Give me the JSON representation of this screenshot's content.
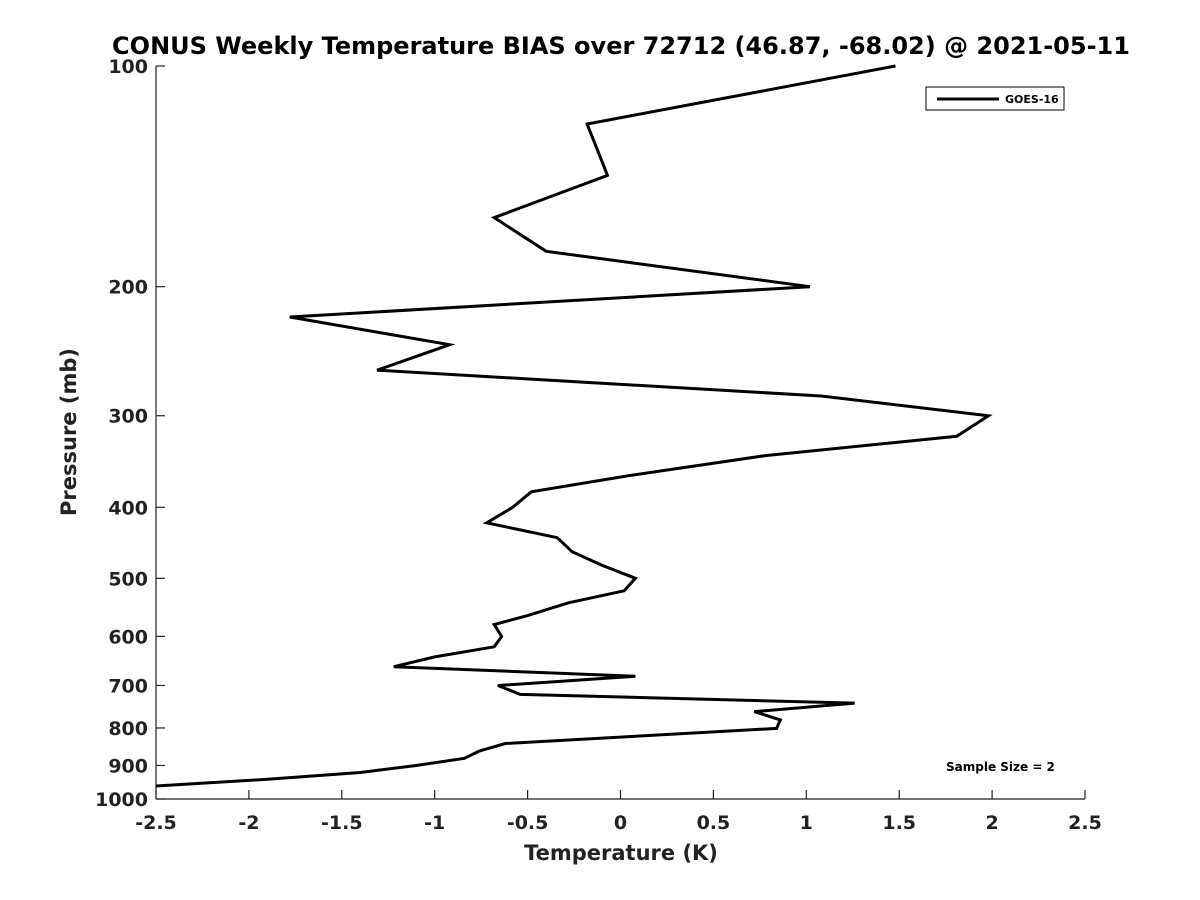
{
  "chart_data": {
    "type": "line",
    "title": "CONUS Weekly Temperature BIAS over 72712 (46.87, -68.02) @ 2021-05-11",
    "xlabel": "Temperature (K)",
    "ylabel": "Pressure (mb)",
    "xlim": [
      -2.5,
      2.5
    ],
    "ylim": [
      1000,
      100
    ],
    "y_scale": "log",
    "y_reversed": true,
    "x_ticks": [
      -2.5,
      -2,
      -1.5,
      -1,
      -0.5,
      0,
      0.5,
      1,
      1.5,
      2,
      2.5
    ],
    "x_tick_labels": [
      "-2.5",
      "-2",
      "-1.5",
      "-1",
      "-0.5",
      "0",
      "0.5",
      "1",
      "1.5",
      "2",
      "2.5"
    ],
    "y_ticks": [
      100,
      200,
      300,
      400,
      500,
      600,
      700,
      800,
      900,
      1000
    ],
    "y_tick_labels": [
      "100",
      "200",
      "300",
      "400",
      "500",
      "600",
      "700",
      "800",
      "900",
      "1000"
    ],
    "grid": false,
    "legend_position": "top-right",
    "series": [
      {
        "name": "GOES-16",
        "color": "#000000",
        "points": [
          [
            1.48,
            100
          ],
          [
            -0.18,
            120
          ],
          [
            -0.07,
            141
          ],
          [
            -0.68,
            161
          ],
          [
            -0.4,
            179
          ],
          [
            1.02,
            200
          ],
          [
            -1.78,
            220
          ],
          [
            -0.92,
            240
          ],
          [
            -1.31,
            260
          ],
          [
            1.08,
            282
          ],
          [
            1.98,
            300
          ],
          [
            1.81,
            320
          ],
          [
            0.78,
            340
          ],
          [
            0.05,
            362
          ],
          [
            -0.48,
            381
          ],
          [
            -0.58,
            400
          ],
          [
            -0.72,
            420
          ],
          [
            -0.34,
            440
          ],
          [
            -0.26,
            460
          ],
          [
            -0.1,
            480
          ],
          [
            0.08,
            500
          ],
          [
            0.02,
            520
          ],
          [
            -0.28,
            540
          ],
          [
            -0.5,
            562
          ],
          [
            -0.68,
            578
          ],
          [
            -0.64,
            600
          ],
          [
            -0.68,
            620
          ],
          [
            -1.0,
            640
          ],
          [
            -1.22,
            660
          ],
          [
            0.08,
            680
          ],
          [
            -0.66,
            700
          ],
          [
            -0.54,
            720
          ],
          [
            1.26,
            740
          ],
          [
            0.72,
            760
          ],
          [
            0.86,
            780
          ],
          [
            0.84,
            801
          ],
          [
            -0.62,
            840
          ],
          [
            -0.76,
            860
          ],
          [
            -0.84,
            880
          ],
          [
            -1.1,
            900
          ],
          [
            -1.4,
            920
          ],
          [
            -1.9,
            940
          ],
          [
            -2.5,
            960
          ]
        ]
      }
    ],
    "annotations": [
      "Sample Size = 2"
    ]
  }
}
